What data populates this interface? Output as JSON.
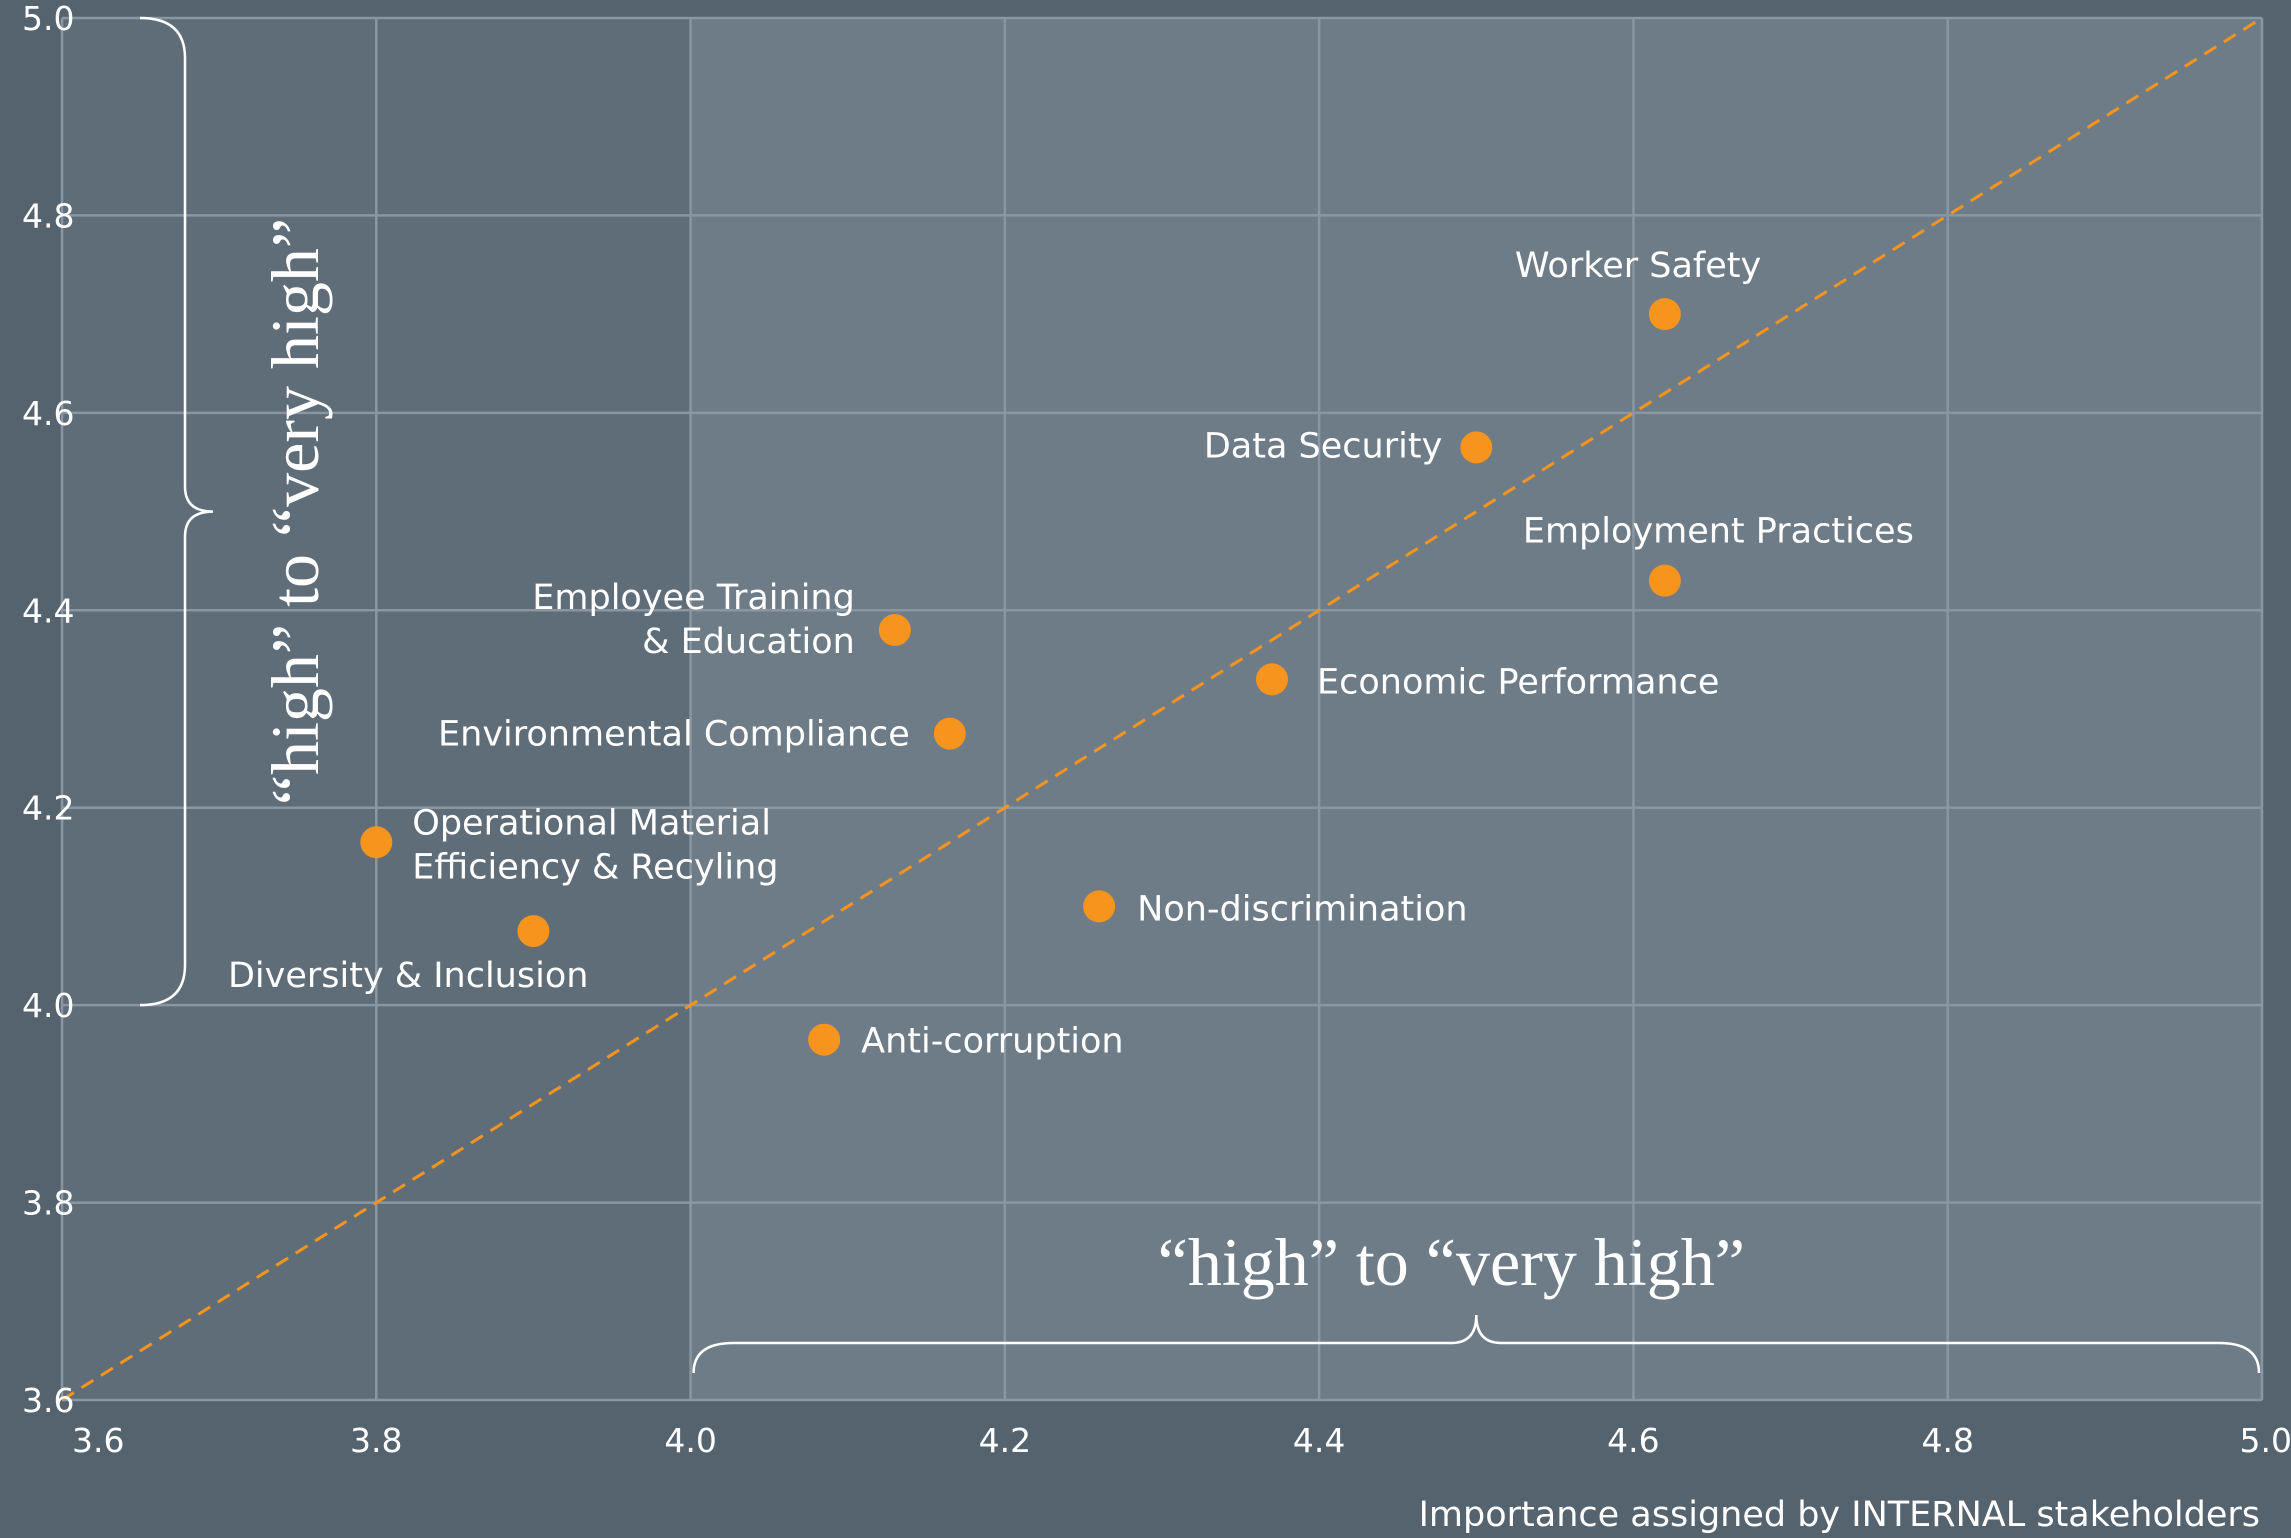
{
  "colors": {
    "background": "#55636f",
    "plot_left": "#5f6d79",
    "plot_right": "#6e7c88",
    "grid": "#8a97a2",
    "point": "#f7941d",
    "diagonal": "#f7941d",
    "text": "#ffffff"
  },
  "chart_data": {
    "type": "scatter",
    "title": "",
    "xlabel": "Importance assigned by INTERNAL stakeholders",
    "ylabel": "",
    "xlim": [
      3.6,
      5.0
    ],
    "ylim": [
      3.6,
      5.0
    ],
    "x_ticks": [
      "3.6",
      "3.8",
      "4.0",
      "4.2",
      "4.4",
      "4.6",
      "4.8",
      "5.0"
    ],
    "y_ticks": [
      "3.6",
      "3.8",
      "4.0",
      "4.2",
      "4.4",
      "4.6",
      "4.8",
      "5.0"
    ],
    "grid": true,
    "reference_line": "y = x",
    "points": [
      {
        "label": "Worker Safety",
        "x": 4.62,
        "y": 4.7
      },
      {
        "label": "Data Security",
        "x": 4.5,
        "y": 4.565
      },
      {
        "label": "Employment Practices",
        "x": 4.62,
        "y": 4.43
      },
      {
        "label": "Employee Training\n& Education",
        "x": 4.13,
        "y": 4.38
      },
      {
        "label": "Economic Performance",
        "x": 4.37,
        "y": 4.33
      },
      {
        "label": "Environmental Compliance",
        "x": 4.165,
        "y": 4.275
      },
      {
        "label": "Operational Material\nEfficiency & Recyling",
        "x": 3.8,
        "y": 4.165
      },
      {
        "label": "Non-discrimination",
        "x": 4.26,
        "y": 4.1
      },
      {
        "label": "Diversity & Inclusion",
        "x": 3.9,
        "y": 4.075
      },
      {
        "label": "Anti-corruption",
        "x": 4.085,
        "y": 3.965
      }
    ],
    "annotations": [
      {
        "text": "“high” to “very high”",
        "axis": "y",
        "from": 4.0,
        "to": 5.0
      },
      {
        "text": "“high” to “very high”",
        "axis": "x",
        "from": 4.0,
        "to": 5.0
      }
    ]
  }
}
